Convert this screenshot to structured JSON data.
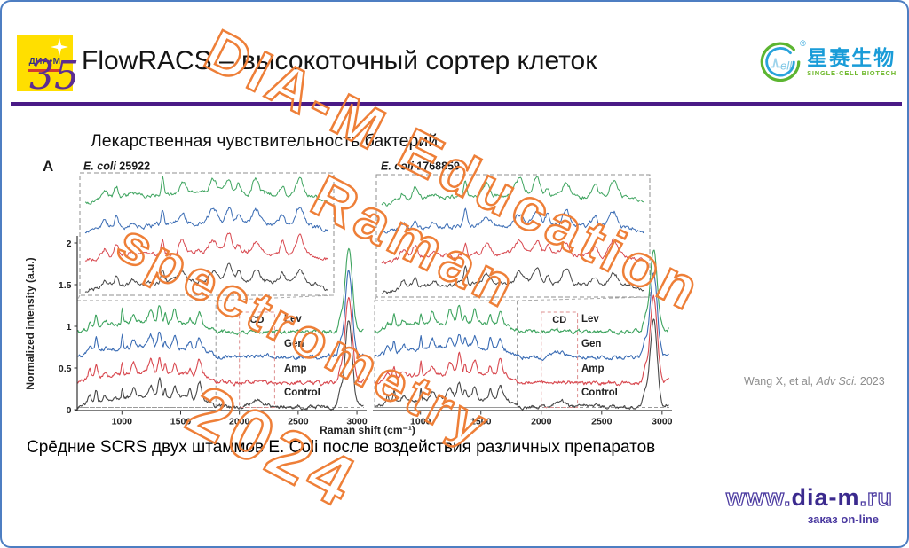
{
  "slide": {
    "title": "FlowRACS – высокоточный сортер клеток",
    "subtitle": "Лекарственная чувствительность бактерий",
    "panel_letter": "A",
    "caption": "Сре̄дние SCRS двух штаммов E. Coli после воздействия различных препаратов",
    "citation": {
      "pre": "Wang X, et al, ",
      "journal": "Adv Sci.",
      "year": " 2023"
    }
  },
  "header": {
    "dia_m_logo_text": "ДИА•М",
    "anniversary": "35",
    "xingsai": {
      "cn": "星赛生物",
      "en": "SINGLE-CELL BIOTECH",
      "reg": "®"
    }
  },
  "watermark": {
    "line1": "DIA-M Education",
    "line2": "Raman",
    "line3": "spectrometry",
    "line4": "2024",
    "color": "#ED7D31"
  },
  "footer": {
    "url_pre": "www.",
    "url_mid": "dia-m",
    "url_post": ".ru",
    "tagline": "заказ on-line"
  },
  "chart_data": {
    "type": "line",
    "title": "Средние SCRS двух штаммов E. coli после воздействия различных препаратов",
    "xlabel": "Raman shift (cm⁻¹)",
    "ylabel": "Normalized intensity (a.u.)",
    "x_ticks": [
      1000,
      1500,
      2000,
      2500,
      3000
    ],
    "y_ticks": [
      0,
      0.5,
      1,
      1.5,
      2
    ],
    "x_range": [
      620,
      3060
    ],
    "ylim": [
      0,
      2.1
    ],
    "grid": false,
    "legend_position": "inline-right-of-cd-box",
    "fingerprint_region": [
      620,
      1800
    ],
    "cd_region": [
      2000,
      2300
    ],
    "cd_label": "CD",
    "ch_peak": [
      2930,
      42
    ],
    "fingerprint_peaks": [
      [
        724,
        16,
        0.1
      ],
      [
        781,
        13,
        0.11
      ],
      [
        860,
        18,
        0.05
      ],
      [
        1003,
        9,
        0.16
      ],
      [
        1098,
        22,
        0.12
      ],
      [
        1245,
        26,
        0.14
      ],
      [
        1320,
        20,
        0.19
      ],
      [
        1368,
        12,
        0.1
      ],
      [
        1450,
        22,
        0.15
      ],
      [
        1578,
        16,
        0.1
      ],
      [
        1660,
        24,
        0.17
      ]
    ],
    "panels": [
      {
        "title_italic": "E. coli",
        "title_rest": " 25922",
        "series": [
          {
            "name": "Lev",
            "color": "#3ea45f",
            "baseline": 0.92,
            "ch_peak_height": 1.0,
            "cd_bump": 0.012,
            "seed": 101
          },
          {
            "name": "Gen",
            "color": "#3a6cb4",
            "baseline": 0.62,
            "ch_peak_height": 1.02,
            "cd_bump": 0.018,
            "seed": 202
          },
          {
            "name": "Amp",
            "color": "#d8484f",
            "baseline": 0.31,
            "ch_peak_height": 1.03,
            "cd_bump": 0.02,
            "seed": 303
          },
          {
            "name": "Control",
            "color": "#474747",
            "baseline": 0.02,
            "ch_peak_height": 1.04,
            "cd_bump": 0.085,
            "seed": 404
          }
        ]
      },
      {
        "title_italic": "E. coli",
        "title_rest": " 1768859",
        "series": [
          {
            "name": "Lev",
            "color": "#3ea45f",
            "baseline": 0.92,
            "ch_peak_height": 1.0,
            "cd_bump": 0.015,
            "seed": 505
          },
          {
            "name": "Gen",
            "color": "#3a6cb4",
            "baseline": 0.62,
            "ch_peak_height": 1.02,
            "cd_bump": 0.055,
            "seed": 606
          },
          {
            "name": "Amp",
            "color": "#d8484f",
            "baseline": 0.31,
            "ch_peak_height": 1.03,
            "cd_bump": 0.02,
            "seed": 707
          },
          {
            "name": "Control",
            "color": "#474747",
            "baseline": 0.02,
            "ch_peak_height": 1.04,
            "cd_bump": 0.075,
            "seed": 808
          }
        ]
      }
    ]
  }
}
